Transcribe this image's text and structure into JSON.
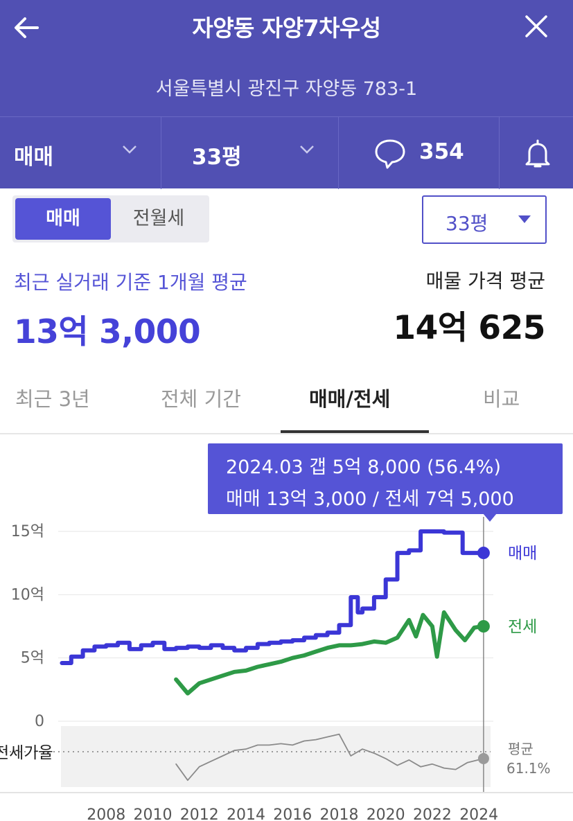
{
  "header": {
    "title": "자양동 자양7차우성",
    "address": "서울특별시 광진구 자양동 783-1",
    "back_icon": "arrow-left-icon",
    "close_icon": "close-icon",
    "filters": {
      "trade_type": "매매",
      "size": "33평",
      "comment_count": "354"
    },
    "bell_icon": "bell-icon",
    "comment_icon": "speech-bubble-icon",
    "bg_color": "#5150b3"
  },
  "segment": {
    "options": [
      "매매",
      "전월세"
    ],
    "selected": "매매"
  },
  "size_select": {
    "value": "33평"
  },
  "summary": {
    "left_label": "최근 실거래 기준 1개월 평균",
    "left_value": "13억 3,000",
    "right_label": "매물 가격 평균",
    "right_value": "14억 625"
  },
  "tabs": {
    "items": [
      "최근 3년",
      "전체 기간",
      "매매/전세",
      "비교"
    ],
    "active": "매매/전세"
  },
  "tooltip": {
    "line1": "2024.03  갭 5억 8,000 (56.4%)",
    "line2": "매매 13억 3,000 / 전세 7억 5,000"
  },
  "chart_data": {
    "type": "line",
    "x_ticks": [
      "2008",
      "2010",
      "2012",
      "2014",
      "2016",
      "2018",
      "2020",
      "2022",
      "2024"
    ],
    "y_ticks": [
      "15억",
      "10억",
      "5억",
      "0"
    ],
    "ylim": [
      0,
      15
    ],
    "xlim": [
      2006.0,
      2024.5
    ],
    "series": [
      {
        "name": "매매",
        "color": "#3b36d6",
        "unit": "억",
        "points": [
          [
            2006.1,
            4.6
          ],
          [
            2006.5,
            5.1
          ],
          [
            2007.0,
            5.6
          ],
          [
            2007.5,
            5.9
          ],
          [
            2008.0,
            6.0
          ],
          [
            2008.5,
            6.2
          ],
          [
            2009.0,
            5.7
          ],
          [
            2009.5,
            6.0
          ],
          [
            2010.0,
            6.2
          ],
          [
            2010.5,
            5.7
          ],
          [
            2011.0,
            5.8
          ],
          [
            2011.5,
            5.9
          ],
          [
            2012.0,
            5.8
          ],
          [
            2012.5,
            6.0
          ],
          [
            2013.0,
            5.8
          ],
          [
            2013.5,
            5.6
          ],
          [
            2014.0,
            5.8
          ],
          [
            2014.5,
            6.1
          ],
          [
            2015.0,
            6.2
          ],
          [
            2015.5,
            6.3
          ],
          [
            2016.0,
            6.4
          ],
          [
            2016.5,
            6.6
          ],
          [
            2017.0,
            6.8
          ],
          [
            2017.5,
            7.0
          ],
          [
            2018.0,
            7.6
          ],
          [
            2018.5,
            9.8
          ],
          [
            2018.8,
            8.6
          ],
          [
            2019.0,
            8.9
          ],
          [
            2019.5,
            9.8
          ],
          [
            2020.0,
            11.2
          ],
          [
            2020.5,
            13.3
          ],
          [
            2021.0,
            13.5
          ],
          [
            2021.5,
            15.0
          ],
          [
            2022.0,
            15.0
          ],
          [
            2022.5,
            14.9
          ],
          [
            2023.0,
            14.9
          ],
          [
            2023.3,
            13.3
          ],
          [
            2023.7,
            13.3
          ],
          [
            2024.2,
            13.3
          ]
        ]
      },
      {
        "name": "전세",
        "color": "#2e9a47",
        "unit": "억",
        "points": [
          [
            2011.0,
            3.3
          ],
          [
            2011.5,
            2.2
          ],
          [
            2012.0,
            3.0
          ],
          [
            2012.5,
            3.3
          ],
          [
            2013.0,
            3.6
          ],
          [
            2013.5,
            3.9
          ],
          [
            2014.0,
            4.0
          ],
          [
            2014.5,
            4.3
          ],
          [
            2015.0,
            4.5
          ],
          [
            2015.5,
            4.7
          ],
          [
            2016.0,
            5.0
          ],
          [
            2016.5,
            5.2
          ],
          [
            2017.0,
            5.5
          ],
          [
            2017.5,
            5.8
          ],
          [
            2018.0,
            6.0
          ],
          [
            2018.5,
            6.0
          ],
          [
            2019.0,
            6.1
          ],
          [
            2019.5,
            6.3
          ],
          [
            2020.0,
            6.2
          ],
          [
            2020.5,
            6.6
          ],
          [
            2021.0,
            8.0
          ],
          [
            2021.3,
            6.7
          ],
          [
            2021.6,
            8.4
          ],
          [
            2022.0,
            7.5
          ],
          [
            2022.2,
            5.1
          ],
          [
            2022.5,
            8.6
          ],
          [
            2023.0,
            7.2
          ],
          [
            2023.4,
            6.4
          ],
          [
            2023.8,
            7.4
          ],
          [
            2024.2,
            7.5
          ]
        ]
      },
      {
        "name": "전세가율",
        "color": "#8a8a8a",
        "unit": "%",
        "points": [
          [
            2011.0,
            52
          ],
          [
            2011.5,
            40
          ],
          [
            2012.0,
            50
          ],
          [
            2012.5,
            54
          ],
          [
            2013.0,
            58
          ],
          [
            2013.5,
            62
          ],
          [
            2014.0,
            63
          ],
          [
            2014.5,
            66
          ],
          [
            2015.0,
            66
          ],
          [
            2015.5,
            67
          ],
          [
            2016.0,
            66
          ],
          [
            2016.5,
            69
          ],
          [
            2017.0,
            70
          ],
          [
            2017.5,
            72
          ],
          [
            2018.0,
            74
          ],
          [
            2018.5,
            58
          ],
          [
            2019.0,
            63
          ],
          [
            2019.5,
            60
          ],
          [
            2020.0,
            56
          ],
          [
            2020.5,
            51
          ],
          [
            2021.0,
            55
          ],
          [
            2021.5,
            50
          ],
          [
            2022.0,
            52
          ],
          [
            2022.5,
            49
          ],
          [
            2023.0,
            48
          ],
          [
            2023.5,
            53
          ],
          [
            2024.2,
            56
          ]
        ]
      }
    ],
    "labels": {
      "sale": "매매",
      "jeonse": "전세"
    },
    "ratio_panel": {
      "label": "전세가율",
      "avg_label": "평균",
      "avg_value": "61.1%",
      "avg": 61.1,
      "ylim": [
        35,
        80
      ]
    },
    "highlight": {
      "x": 2024.2,
      "label": "2024.03"
    }
  }
}
